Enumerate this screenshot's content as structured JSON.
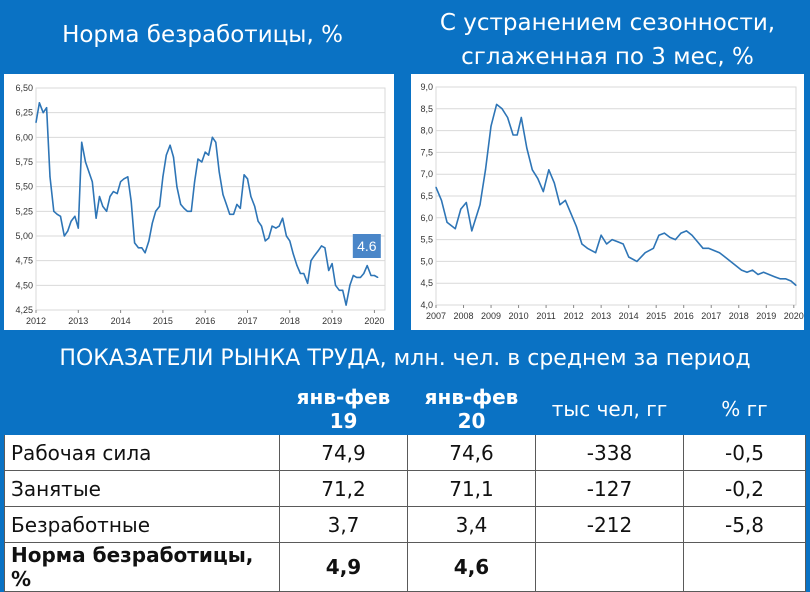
{
  "titles": {
    "left": "Норма безработицы, %",
    "right_line1": "С устранением сезонности,",
    "right_line2": "сглаженная по 3 мес, %",
    "table": "ПОКАЗАТЕЛИ РЫНКА ТРУДА, млн. чел. в среднем за период"
  },
  "colors": {
    "background": "#0a72c4",
    "line": "#2e75b6",
    "negative": "#c00000",
    "positive": "#4a86c8"
  },
  "chart_data": [
    {
      "type": "line",
      "title": "Норма безработицы, %",
      "ylim": [
        4.25,
        6.5
      ],
      "yticks": [
        "4,25",
        "4,50",
        "4,75",
        "5,00",
        "5,25",
        "5,50",
        "5,75",
        "6,00",
        "6,25",
        "6,50"
      ],
      "xlim": [
        2012.0,
        2020.25
      ],
      "xticks": [
        "2012",
        "2013",
        "2014",
        "2015",
        "2016",
        "2017",
        "2018",
        "2019",
        "2020"
      ],
      "annotation": "4.6",
      "series": [
        {
          "x": [
            2012.0,
            2012.08,
            2012.17,
            2012.25,
            2012.33,
            2012.42,
            2012.5,
            2012.58,
            2012.67,
            2012.75,
            2012.83,
            2012.92,
            2013.0,
            2013.08,
            2013.17,
            2013.25,
            2013.33,
            2013.42,
            2013.5,
            2013.58,
            2013.67,
            2013.75,
            2013.83,
            2013.92,
            2014.0,
            2014.08,
            2014.17,
            2014.25,
            2014.33,
            2014.42,
            2014.5,
            2014.58,
            2014.67,
            2014.75,
            2014.83,
            2014.92,
            2015.0,
            2015.08,
            2015.17,
            2015.25,
            2015.33,
            2015.42,
            2015.5,
            2015.58,
            2015.67,
            2015.75,
            2015.83,
            2015.92,
            2016.0,
            2016.08,
            2016.17,
            2016.25,
            2016.33,
            2016.42,
            2016.5,
            2016.58,
            2016.67,
            2016.75,
            2016.83,
            2016.92,
            2017.0,
            2017.08,
            2017.17,
            2017.25,
            2017.33,
            2017.42,
            2017.5,
            2017.58,
            2017.67,
            2017.75,
            2017.83,
            2017.92,
            2018.0,
            2018.08,
            2018.17,
            2018.25,
            2018.33,
            2018.42,
            2018.5,
            2018.58,
            2018.67,
            2018.75,
            2018.83,
            2018.92,
            2019.0,
            2019.08,
            2019.17,
            2019.25,
            2019.33,
            2019.42,
            2019.5,
            2019.58,
            2019.67,
            2019.75,
            2019.83,
            2019.92,
            2020.0,
            2020.08
          ],
          "y": [
            6.15,
            6.35,
            6.25,
            6.3,
            5.6,
            5.25,
            5.22,
            5.2,
            5.0,
            5.05,
            5.15,
            5.2,
            5.08,
            5.95,
            5.75,
            5.65,
            5.55,
            5.18,
            5.4,
            5.3,
            5.25,
            5.4,
            5.45,
            5.43,
            5.55,
            5.58,
            5.6,
            5.35,
            4.93,
            4.88,
            4.88,
            4.83,
            4.95,
            5.13,
            5.25,
            5.3,
            5.6,
            5.82,
            5.92,
            5.8,
            5.5,
            5.32,
            5.28,
            5.25,
            5.25,
            5.55,
            5.78,
            5.75,
            5.85,
            5.82,
            6.0,
            5.95,
            5.65,
            5.42,
            5.32,
            5.22,
            5.22,
            5.32,
            5.28,
            5.62,
            5.58,
            5.4,
            5.3,
            5.15,
            5.1,
            4.95,
            4.98,
            5.1,
            5.08,
            5.1,
            5.18,
            5.0,
            4.95,
            4.82,
            4.7,
            4.62,
            4.62,
            4.52,
            4.75,
            4.8,
            4.85,
            4.9,
            4.88,
            4.65,
            4.72,
            4.5,
            4.45,
            4.45,
            4.3,
            4.5,
            4.6,
            4.58,
            4.58,
            4.62,
            4.7,
            4.6,
            4.6,
            4.58
          ]
        }
      ]
    },
    {
      "type": "line",
      "title": "С устранением сезонности, сглаженная по 3 мес, %",
      "ylim": [
        4.0,
        9.0
      ],
      "yticks": [
        "4,0",
        "4,5",
        "5,0",
        "5,5",
        "6,0",
        "6,5",
        "7,0",
        "7,5",
        "8,0",
        "8,5",
        "9,0"
      ],
      "xlim": [
        2007.0,
        2020.08
      ],
      "xticks": [
        "2007",
        "2008",
        "2009",
        "2010",
        "2011",
        "2012",
        "2013",
        "2014",
        "2015",
        "2016",
        "2017",
        "2018",
        "2019",
        "2020"
      ],
      "series": [
        {
          "x": [
            2007.0,
            2007.2,
            2007.4,
            2007.7,
            2007.9,
            2008.1,
            2008.3,
            2008.6,
            2008.8,
            2009.0,
            2009.2,
            2009.4,
            2009.6,
            2009.8,
            2009.95,
            2010.1,
            2010.3,
            2010.5,
            2010.7,
            2010.9,
            2011.1,
            2011.3,
            2011.5,
            2011.7,
            2011.9,
            2012.1,
            2012.3,
            2012.5,
            2012.8,
            2013.0,
            2013.2,
            2013.4,
            2013.6,
            2013.8,
            2014.0,
            2014.3,
            2014.6,
            2014.9,
            2015.1,
            2015.3,
            2015.5,
            2015.7,
            2015.9,
            2016.1,
            2016.3,
            2016.5,
            2016.7,
            2016.9,
            2017.1,
            2017.3,
            2017.5,
            2017.7,
            2017.9,
            2018.1,
            2018.3,
            2018.5,
            2018.7,
            2018.9,
            2019.1,
            2019.3,
            2019.5,
            2019.7,
            2019.9,
            2020.08
          ],
          "y": [
            6.7,
            6.4,
            5.9,
            5.75,
            6.2,
            6.35,
            5.7,
            6.3,
            7.1,
            8.1,
            8.6,
            8.5,
            8.3,
            7.9,
            7.9,
            8.3,
            7.6,
            7.1,
            6.9,
            6.6,
            7.1,
            6.8,
            6.3,
            6.4,
            6.1,
            5.8,
            5.4,
            5.3,
            5.2,
            5.6,
            5.4,
            5.5,
            5.45,
            5.4,
            5.1,
            5.0,
            5.2,
            5.3,
            5.6,
            5.65,
            5.55,
            5.5,
            5.65,
            5.7,
            5.6,
            5.45,
            5.3,
            5.3,
            5.25,
            5.2,
            5.1,
            5.0,
            4.9,
            4.8,
            4.75,
            4.8,
            4.7,
            4.75,
            4.7,
            4.65,
            4.6,
            4.6,
            4.55,
            4.45
          ]
        }
      ]
    }
  ],
  "table": {
    "columns": [
      "",
      "янв-фев 19",
      "янв-фев 20",
      "тыс чел, гг",
      "% гг"
    ],
    "rows": [
      {
        "label": "Рабочая сила",
        "v19": "74,9",
        "v20": "74,6",
        "chg": "-338",
        "pct": "-0,5"
      },
      {
        "label": "Занятые",
        "v19": "71,2",
        "v20": "71,1",
        "chg": "-127",
        "pct": "-0,2"
      },
      {
        "label": "Безработные",
        "v19": "3,7",
        "v20": "3,4",
        "chg": "-212",
        "pct": "-5,8"
      },
      {
        "label": "Норма безработицы, %",
        "v19": "4,9",
        "v20": "4,6",
        "chg": "",
        "pct": ""
      }
    ]
  }
}
